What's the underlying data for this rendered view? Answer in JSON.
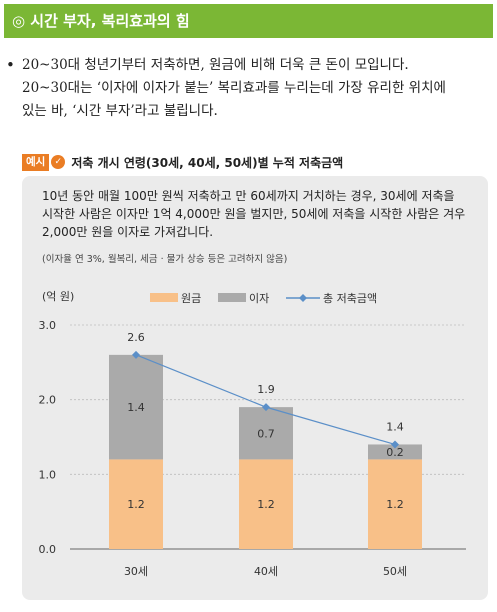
{
  "header": {
    "title": "◎ 시간 부자, 복리효과의 힘"
  },
  "intro": {
    "bullet": "•",
    "lines": [
      "20~30대 청년기부터 저축하면, 원금에 비해 더욱 큰 돈이 모입니다.",
      "20~30대는 ‘이자에 이자가 붙는’ 복리효과를 누리는데 가장 유리한 위치에",
      "있는 바, ‘시간 부자’라고 불립니다."
    ]
  },
  "example": {
    "tag": "예시",
    "check_icon": "check-circle-icon",
    "title": "저축 개시 연령(30세, 40세, 50세)별 누적 저축금액",
    "description_lines": [
      "10년 동안 매월 100만 원씩 저축하고 만 60세까지 거치하는 경우, 30세에 저축을",
      "시작한 사람은 이자만 1억 4,000만 원을 벌지만, 50세에 저축을 시작한 사람은 겨우",
      "2,000만 원을 이자로 가져갑니다."
    ],
    "note": "(이자율 연 3%, 월복리, 세금 · 물가 상승 등은 고려하지 않음)"
  },
  "chart_data": {
    "type": "bar",
    "stacked": true,
    "categories": [
      "30세",
      "40세",
      "50세"
    ],
    "series": [
      {
        "name": "원금",
        "values": [
          1.2,
          1.2,
          1.2
        ],
        "color": "#f8c088"
      },
      {
        "name": "이자",
        "values": [
          1.4,
          0.7,
          0.2
        ],
        "color": "#aaaaaa"
      }
    ],
    "line_series": {
      "name": "총 저축금액",
      "values": [
        2.6,
        1.9,
        1.4
      ],
      "color": "#5b8fc8"
    },
    "yunit": "(억 원)",
    "ylim": [
      0,
      3
    ],
    "yticks": [
      "0.0",
      "1.0",
      "2.0",
      "3.0"
    ],
    "grid": true,
    "legend": "top"
  }
}
